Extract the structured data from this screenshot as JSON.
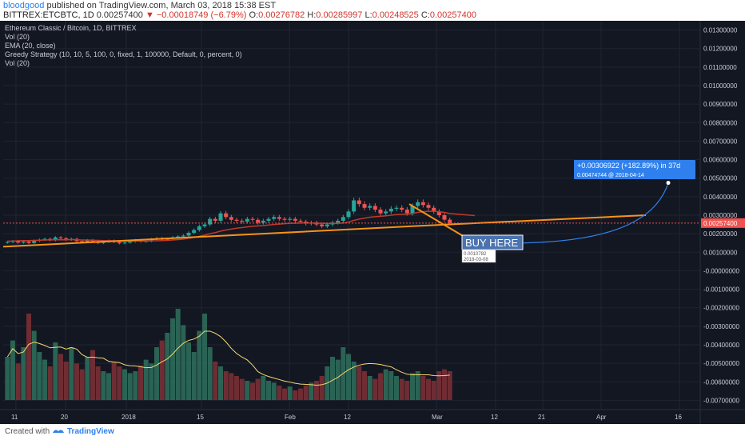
{
  "header": {
    "author": "bloodgood",
    "published": "published on TradingView.com, March 03, 2018 15:38 EST",
    "symbol": "BITTREX:ETCBTC, 1D",
    "close": "0.00257400",
    "change": "▼ −0.00018749 (−6.79%)",
    "o_label": "O:",
    "o": "0.00276782",
    "h_label": "H:",
    "h": "0.00285997",
    "l_label": "L:",
    "l": "0.00248525",
    "c_label": "C:",
    "c": "0.00257400"
  },
  "legend": {
    "title": "Ethereum Classic / Bitcoin, 1D, BITTREX",
    "vol1": "Vol (20)",
    "ema": "EMA (20, close)",
    "strategy": "Greedy Strategy (10, 10, 5, 100, 0, fixed, 1, 100000, Default, 0, percent, 0)",
    "vol2": "Vol (20)"
  },
  "annotations": {
    "buy_here": "BUY HERE",
    "projection_line1": "+0.00306922 (+182.89%) in 37d",
    "projection_line2": "0.00474744 @ 2018-04-14",
    "tooltip_value": "0.0010782",
    "tooltip_date": "2018-03-08",
    "last_price": "0.00257400"
  },
  "footer": {
    "created_with": "Created with",
    "brand": "TradingView"
  },
  "colors": {
    "background": "#131722",
    "up": "#26a69a",
    "down": "#ef5350",
    "ema": "#c0392b",
    "trendline": "#f7931a",
    "projection": "#2f80ed",
    "volume_ma": "#f5d76e"
  },
  "chart_data": {
    "type": "candlestick",
    "title": "Ethereum Classic / Bitcoin, 1D, BITTREX",
    "y_ticks": [
      "0.01300000",
      "0.01200000",
      "0.01100000",
      "0.01000000",
      "0.00900000",
      "0.00800000",
      "0.00700000",
      "0.00600000",
      "0.00500000",
      "0.00400000",
      "0.00300000",
      "0.00200000",
      "0.00100000",
      "-0.00000000",
      "-0.00100000",
      "-0.00200000",
      "-0.00300000",
      "-0.00400000",
      "-0.00500000",
      "-0.00600000",
      "-0.00700000"
    ],
    "x_ticks": [
      "11",
      "20",
      "2018",
      "15",
      "Feb",
      "12",
      "Mar",
      "12",
      "21",
      "Apr",
      "16"
    ],
    "ylim": [
      -0.0075,
      0.0135
    ],
    "candles_close": [
      0.00155,
      0.0016,
      0.00152,
      0.00158,
      0.0015,
      0.00162,
      0.00168,
      0.00172,
      0.00165,
      0.0018,
      0.00175,
      0.00168,
      0.00172,
      0.0016,
      0.00155,
      0.00165,
      0.00158,
      0.0015,
      0.00156,
      0.00162,
      0.00155,
      0.00148,
      0.00152,
      0.00158,
      0.00165,
      0.00158,
      0.0016,
      0.0017,
      0.00175,
      0.00168,
      0.00172,
      0.0018,
      0.00185,
      0.0019,
      0.00205,
      0.0022,
      0.0024,
      0.0025,
      0.0028,
      0.0027,
      0.0031,
      0.0029,
      0.00275,
      0.0027,
      0.00265,
      0.0028,
      0.00275,
      0.0026,
      0.0027,
      0.0028,
      0.0029,
      0.0028,
      0.00275,
      0.0028,
      0.0027,
      0.00265,
      0.00255,
      0.0026,
      0.0025,
      0.0024,
      0.0025,
      0.0026,
      0.0027,
      0.0029,
      0.0032,
      0.0038,
      0.0036,
      0.0034,
      0.0035,
      0.0033,
      0.0031,
      0.0032,
      0.00335,
      0.0034,
      0.0033,
      0.0031,
      0.0035,
      0.0037,
      0.00355,
      0.0034,
      0.0032,
      0.003,
      0.00276,
      0.002574
    ],
    "ema": [
      0.0016,
      0.0016,
      0.00162,
      0.00163,
      0.00163,
      0.00164,
      0.00165,
      0.00166,
      0.00166,
      0.00167,
      0.00167,
      0.00167,
      0.00168,
      0.00167,
      0.00166,
      0.00166,
      0.00165,
      0.00164,
      0.00163,
      0.00163,
      0.00162,
      0.00161,
      0.0016,
      0.0016,
      0.0016,
      0.0016,
      0.0016,
      0.00161,
      0.00162,
      0.00163,
      0.00164,
      0.00166,
      0.00168,
      0.00171,
      0.00175,
      0.0018,
      0.00186,
      0.00192,
      0.002,
      0.00206,
      0.00214,
      0.0022,
      0.00225,
      0.0023,
      0.00233,
      0.00237,
      0.0024,
      0.00242,
      0.00244,
      0.00247,
      0.0025,
      0.00252,
      0.00254,
      0.00256,
      0.00257,
      0.00258,
      0.00258,
      0.00258,
      0.00257,
      0.00256,
      0.00255,
      0.00255,
      0.00256,
      0.00258,
      0.00263,
      0.00272,
      0.00279,
      0.00284,
      0.00289,
      0.00292,
      0.00294,
      0.00297,
      0.003,
      0.00303,
      0.00305,
      0.00305,
      0.00309,
      0.00315,
      0.00319,
      0.00321,
      0.00321,
      0.00319,
      0.00315,
      0.00309
    ],
    "volume": [
      0.45,
      0.62,
      0.38,
      0.55,
      0.9,
      0.72,
      0.5,
      0.42,
      0.35,
      0.6,
      0.48,
      0.4,
      0.55,
      0.38,
      0.32,
      0.45,
      0.52,
      0.35,
      0.3,
      0.28,
      0.4,
      0.35,
      0.32,
      0.28,
      0.3,
      0.36,
      0.42,
      0.38,
      0.55,
      0.62,
      0.7,
      0.85,
      0.95,
      0.78,
      0.6,
      0.5,
      0.72,
      0.9,
      0.55,
      0.4,
      0.35,
      0.3,
      0.28,
      0.25,
      0.22,
      0.2,
      0.18,
      0.22,
      0.25,
      0.2,
      0.18,
      0.15,
      0.12,
      0.14,
      0.1,
      0.12,
      0.15,
      0.18,
      0.2,
      0.25,
      0.35,
      0.45,
      0.42,
      0.55,
      0.48,
      0.4,
      0.35,
      0.3,
      0.25,
      0.22,
      0.28,
      0.32,
      0.3,
      0.25,
      0.22,
      0.2,
      0.28,
      0.3,
      0.25,
      0.22,
      0.2,
      0.3,
      0.32,
      0.3
    ],
    "trendline_lower": [
      [
        0,
        0.001
      ],
      [
        840,
        0.003
      ]
    ],
    "last_price": 0.002574,
    "projection_target": 0.00474744,
    "projection_date": "2018-04-14",
    "grid": true
  }
}
